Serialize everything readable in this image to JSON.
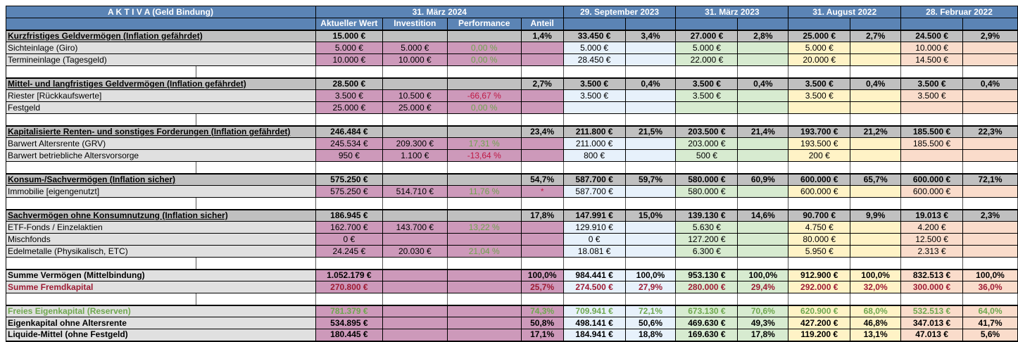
{
  "title": "A K T I V A (Geld Bindung)",
  "colgroups": [
    {
      "label": "31. März 2024",
      "sub": [
        "Aktueller Wert",
        "Investition",
        "Performance",
        "Anteil"
      ]
    },
    {
      "label": "29. September 2023"
    },
    {
      "label": "31. März 2023"
    },
    {
      "label": "31. August 2022"
    },
    {
      "label": "28. Februar 2022"
    }
  ],
  "colors": {
    "header": "#5B84B5",
    "section_bg": "#C0C0C0",
    "label_bg": "#E0E0E0",
    "current": "#CD99BA",
    "sep2023": "#E7F1FB",
    "mar2023": "#D7EBD0",
    "aug2022": "#FFF3C6",
    "feb2022": "#FADCCB",
    "positive": "#6FA24E",
    "negative": "#BE1844",
    "liability": "#9D1B33",
    "equity_green": "#6FA84F"
  },
  "rows": [
    {
      "type": "section",
      "label": "Kurzfristiges Geldvermögen (Inflation gefährdet)",
      "cells": [
        "15.000 €",
        "",
        "",
        "1,4%",
        "33.450 €",
        "3,4%",
        "27.000 €",
        "2,8%",
        "25.000 €",
        "2,7%",
        "24.500 €",
        "2,9%"
      ]
    },
    {
      "type": "detail",
      "label": "Sichteinlage (Giro)",
      "cells": [
        "5.000 €",
        "5.000 €",
        "0,00 %",
        "",
        "5.000 €",
        "",
        "5.000 €",
        "",
        "5.000 €",
        "",
        "10.000 €",
        ""
      ]
    },
    {
      "type": "detail",
      "label": "Termineinlage (Tagesgeld)",
      "cells": [
        "10.000 €",
        "10.000 €",
        "0,00 %",
        "",
        "28.450 €",
        "",
        "22.000 €",
        "",
        "20.000 €",
        "",
        "14.500 €",
        ""
      ]
    },
    {
      "type": "empty"
    },
    {
      "type": "section",
      "label": "Mittel- und langfristiges Geldvermögen  (Inflation gefährdet)",
      "cells": [
        "28.500 €",
        "",
        "",
        "2,7%",
        "3.500 €",
        "0,4%",
        "3.500 €",
        "0,4%",
        "3.500 €",
        "0,4%",
        "3.500 €",
        "0,4%"
      ]
    },
    {
      "type": "detail",
      "label": "Riester [Rückkaufswerte]",
      "cells": [
        "3.500 €",
        "10.500 €",
        "-66,67 %",
        "",
        "3.500 €",
        "",
        "3.500 €",
        "",
        "3.500 €",
        "",
        "3.500 €",
        ""
      ]
    },
    {
      "type": "detail",
      "label": "Festgeld",
      "cells": [
        "25.000 €",
        "25.000 €",
        "0,00 %",
        "",
        "",
        "",
        "",
        "",
        "",
        "",
        "",
        ""
      ]
    },
    {
      "type": "empty"
    },
    {
      "type": "section",
      "label": "Kapitalisierte Renten- und sonstiges Forderungen  (Inflation gefährdet)",
      "cells": [
        "246.484 €",
        "",
        "",
        "23,4%",
        "211.800 €",
        "21,5%",
        "203.500 €",
        "21,4%",
        "193.700 €",
        "21,2%",
        "185.500 €",
        "22,3%"
      ]
    },
    {
      "type": "detail",
      "label": "Barwert Altersrente (GRV)",
      "cells": [
        "245.534 €",
        "209.300 €",
        "17,31 %",
        "",
        "211.000 €",
        "",
        "203.000 €",
        "",
        "193.500 €",
        "",
        "185.500 €",
        ""
      ]
    },
    {
      "type": "detail",
      "label": "Barwert betriebliche Altersvorsorge",
      "cells": [
        "950 €",
        "1.100 €",
        "-13,64 %",
        "",
        "800 €",
        "",
        "500 €",
        "",
        "200 €",
        "",
        "",
        ""
      ]
    },
    {
      "type": "empty"
    },
    {
      "type": "section",
      "label": "Konsum-/Sachvermögen (Inflation sicher)",
      "cells": [
        "575.250 €",
        "",
        "",
        "54,7%",
        "587.700 €",
        "59,7%",
        "580.000 €",
        "60,9%",
        "600.000 €",
        "65,7%",
        "600.000 €",
        "72,1%"
      ]
    },
    {
      "type": "detail",
      "label": "Immobilie [eigengenutzt]",
      "cells": [
        "575.250 €",
        "514.710 €",
        "11,76 %",
        "*",
        "587.700 €",
        "",
        "580.000 €",
        "",
        "600.000 €",
        "",
        "600.000 €",
        ""
      ]
    },
    {
      "type": "empty"
    },
    {
      "type": "section",
      "label": "Sachvermögen ohne Konsumnutzung (Inflation sicher)",
      "cells": [
        "186.945 €",
        "",
        "",
        "17,8%",
        "147.991 €",
        "15,0%",
        "139.130 €",
        "14,6%",
        "90.700 €",
        "9,9%",
        "19.013 €",
        "2,3%"
      ]
    },
    {
      "type": "detail",
      "label": "ETF-Fonds / Einzelaktien",
      "cells": [
        "162.700 €",
        "143.700 €",
        "13,22 %",
        "",
        "129.910 €",
        "",
        "5.630 €",
        "",
        "4.750 €",
        "",
        "4.200 €",
        ""
      ]
    },
    {
      "type": "detail",
      "label": "Mischfonds",
      "cells": [
        "0 €",
        "",
        "",
        "",
        "0 €",
        "",
        "127.200 €",
        "",
        "80.000 €",
        "",
        "12.500 €",
        ""
      ]
    },
    {
      "type": "detail",
      "label": "Edelmetalle (Physikalisch, ETC)",
      "cells": [
        "24.245 €",
        "20.030 €",
        "21,04 %",
        "",
        "18.081 €",
        "",
        "6.300 €",
        "",
        "5.950 €",
        "",
        "2.313 €",
        ""
      ]
    },
    {
      "type": "empty"
    },
    {
      "type": "total",
      "thick_top": true,
      "label": "Summe Vermögen (Mittelbindung)",
      "cells": [
        "1.052.179 €",
        "",
        "",
        "100,0%",
        "984.441 €",
        "100,0%",
        "953.130 €",
        "100,0%",
        "912.900 €",
        "100,0%",
        "832.513 €",
        "100,0%"
      ]
    },
    {
      "type": "total_red",
      "label": "Summe Fremdkapital",
      "cells": [
        "270.800 €",
        "",
        "",
        "25,7%",
        "274.500 €",
        "27,9%",
        "280.000 €",
        "29,4%",
        "292.000 €",
        "32,0%",
        "300.000 €",
        "36,0%"
      ]
    },
    {
      "type": "empty"
    },
    {
      "type": "total_green",
      "thick_top": true,
      "label": "Freies Eigenkapital (Reserven)",
      "cells": [
        "781.379 €",
        "",
        "",
        "74,3%",
        "709.941 €",
        "72,1%",
        "673.130 €",
        "70,6%",
        "620.900 €",
        "68,0%",
        "532.513 €",
        "64,0%"
      ]
    },
    {
      "type": "total",
      "label": "Eigenkapital ohne Altersrente",
      "cells": [
        "534.895 €",
        "",
        "",
        "50,8%",
        "498.141 €",
        "50,6%",
        "469.630 €",
        "49,3%",
        "427.200 €",
        "46,8%",
        "347.013 €",
        "41,7%"
      ]
    },
    {
      "type": "total",
      "label": "Liquide-Mittel (ohne Festgeld)",
      "cells": [
        "180.445 €",
        "",
        "",
        "17,1%",
        "184.941 €",
        "18,8%",
        "169.630 €",
        "17,8%",
        "119.200 €",
        "13,1%",
        "47.013 €",
        "5,6%"
      ]
    }
  ]
}
